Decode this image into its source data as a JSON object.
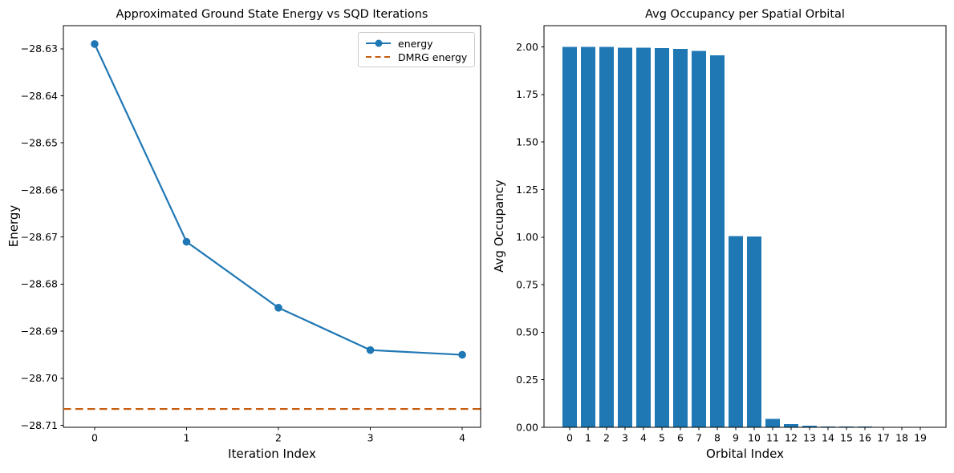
{
  "figure": {
    "background": "#ffffff",
    "text_color": "#000000",
    "axis_color": "#000000"
  },
  "chart_data": [
    {
      "type": "line",
      "title": "Approximated Ground State Energy vs SQD Iterations",
      "xlabel": "Iteration Index",
      "ylabel": "Energy",
      "x": [
        0,
        1,
        2,
        3,
        4
      ],
      "series": [
        {
          "name": "energy",
          "style": "solid-line-circle-markers",
          "color": "#1f77b4",
          "values": [
            -28.629,
            -28.671,
            -28.685,
            -28.694,
            -28.695
          ]
        },
        {
          "name": "DMRG energy",
          "style": "dashed-horizontal-line",
          "color": "#c65d0e",
          "value": -28.7065
        }
      ],
      "xlim": [
        -0.34,
        4.2
      ],
      "ylim": [
        -28.7104,
        -28.6251
      ],
      "xticks": {
        "values": [
          0,
          1,
          2,
          3,
          4
        ],
        "labels": [
          "0",
          "1",
          "2",
          "3",
          "4"
        ]
      },
      "yticks": {
        "values": [
          -28.63,
          -28.64,
          -28.65,
          -28.66,
          -28.67,
          -28.68,
          -28.69,
          -28.7,
          -28.71
        ],
        "labels": [
          "−28.63",
          "−28.64",
          "−28.65",
          "−28.66",
          "−28.67",
          "−28.68",
          "−28.69",
          "−28.70",
          "−28.71"
        ]
      },
      "legend": {
        "position": "upper-right",
        "entries": [
          "energy",
          "DMRG energy"
        ]
      },
      "grid": false
    },
    {
      "type": "bar",
      "title": "Avg Occupancy per Spatial Orbital",
      "xlabel": "Orbital Index",
      "ylabel": "Avg Occupancy",
      "categories": [
        "0",
        "1",
        "2",
        "3",
        "4",
        "5",
        "6",
        "7",
        "8",
        "9",
        "10",
        "11",
        "12",
        "13",
        "14",
        "15",
        "16",
        "17",
        "18",
        "19"
      ],
      "values": [
        2.0,
        2.0,
        2.0,
        1.996,
        1.996,
        1.995,
        1.99,
        1.98,
        1.955,
        1.005,
        1.004,
        0.045,
        0.017,
        0.009,
        0.004,
        0.005,
        0.005,
        0.001,
        0.0008,
        0.0005
      ],
      "bar_color": "#1f77b4",
      "bar_width_fraction": 0.8,
      "xlim": [
        -1.39,
        20.39
      ],
      "ylim": [
        0,
        2.112
      ],
      "yticks": {
        "values": [
          0,
          0.25,
          0.5,
          0.75,
          1.0,
          1.25,
          1.5,
          1.75,
          2.0
        ],
        "labels": [
          "0.00",
          "0.25",
          "0.50",
          "0.75",
          "1.00",
          "1.25",
          "1.50",
          "1.75",
          "2.00"
        ]
      },
      "grid": false
    }
  ]
}
